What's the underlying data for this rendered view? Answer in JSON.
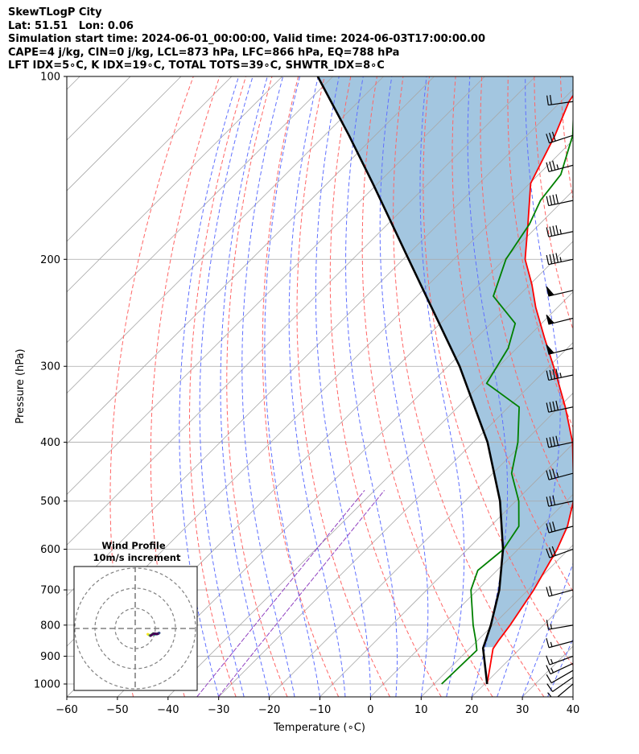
{
  "header": {
    "line1": "SkewTLogP City",
    "line2": "Lat: 51.51   Lon: 0.06",
    "line3": "Simulation start time: 2024-06-01_00:00:00, Valid time: 2024-06-03T17:00:00.00",
    "line4": "CAPE=4 j/kg, CIN=0 j/kg, LCL=873 hPa, LFC=866 hPa, EQ=788 hPa",
    "line5": "LFT IDX=5∘C, K IDX=19∘C, TOTAL TOTS=39∘C, SHWTR_IDX=8∘C"
  },
  "chart_data": {
    "type": "line",
    "title": "SkewTLogP City",
    "xlabel": "Temperature (∘C)",
    "ylabel": "Pressure (hPa)",
    "xlim": [
      -60,
      40
    ],
    "ylim": [
      1050,
      100
    ],
    "y_scale": "log",
    "x_ticks": [
      -60,
      -50,
      -40,
      -30,
      -20,
      -10,
      0,
      10,
      20,
      30,
      40
    ],
    "x_tick_labels": [
      "−60",
      "−50",
      "−40",
      "−30",
      "−20",
      "−10",
      "0",
      "10",
      "20",
      "30",
      "40"
    ],
    "y_ticks": [
      1000,
      900,
      800,
      700,
      600,
      500,
      400,
      300,
      200,
      100
    ],
    "y_tick_labels": [
      "1000",
      "900",
      "800",
      "700",
      "600",
      "500",
      "400",
      "300",
      "200",
      "100"
    ],
    "grid": true,
    "colors": {
      "temperature": "#ff0000",
      "dewpoint": "#008000",
      "parcel": "#000000",
      "shade": "#a3c6e0",
      "dry_adiabats": "#ff6666",
      "moist_adiabats": "#6070ff",
      "mixing_ratio": "#9040c0",
      "isotherms": "#a8a8a8"
    },
    "series": [
      {
        "p": [
          1000,
          875,
          850,
          800,
          700,
          600,
          550,
          500,
          450,
          400,
          350,
          310,
          270,
          240,
          220,
          200,
          175,
          150,
          125,
          110,
          100
        ],
        "t": [
          20.5,
          14.7,
          14.2,
          13.4,
          11.1,
          7.7,
          5.2,
          1.4,
          -4.1,
          -10.4,
          -18.8,
          -26.9,
          -36.4,
          -44.3,
          -49.6,
          -55.9,
          -62.3,
          -69.8,
          -74.5,
          -78.4,
          -80.0
        ]
      },
      {
        "p": [
          1000,
          880,
          850,
          800,
          700,
          650,
          600,
          550,
          500,
          450,
          400,
          350,
          320,
          280,
          255,
          230,
          200,
          175,
          160,
          145,
          125,
          110,
          100
        ],
        "t": [
          11.5,
          11.8,
          9.8,
          6.1,
          -1.3,
          -3.8,
          -2.9,
          -4.4,
          -9.4,
          -16.3,
          -21.2,
          -27.9,
          -39.0,
          -41.7,
          -45.2,
          -54.9,
          -59.7,
          -62.0,
          -64.5,
          -65.6,
          -71.0,
          -77.4,
          -80.3
        ]
      },
      {
        "p": [
          1000,
          873,
          850,
          800,
          700,
          600,
          500,
          400,
          300,
          200,
          150,
          125,
          100
        ],
        "t": [
          20.5,
          12.6,
          11.7,
          9.6,
          4.3,
          -3.0,
          -13.1,
          -27.2,
          -47.7,
          -78.9,
          -101.0,
          -115.2,
          -133.0
        ]
      }
    ],
    "wind_profile": {
      "title_line1": "Wind Profile",
      "title_line2": "10m/s increment",
      "rings_ms": [
        10,
        20,
        30
      ]
    },
    "wind_barbs": [
      {
        "p": 1000,
        "spd_kt": 13,
        "dir_deg": 230
      },
      {
        "p": 975,
        "spd_kt": 13,
        "dir_deg": 235
      },
      {
        "p": 950,
        "spd_kt": 14,
        "dir_deg": 240
      },
      {
        "p": 925,
        "spd_kt": 15,
        "dir_deg": 245
      },
      {
        "p": 900,
        "spd_kt": 16,
        "dir_deg": 250
      },
      {
        "p": 850,
        "spd_kt": 17,
        "dir_deg": 255
      },
      {
        "p": 800,
        "spd_kt": 19,
        "dir_deg": 260
      },
      {
        "p": 700,
        "spd_kt": 24,
        "dir_deg": 255
      },
      {
        "p": 600,
        "spd_kt": 30,
        "dir_deg": 250
      },
      {
        "p": 550,
        "spd_kt": 32,
        "dir_deg": 255
      },
      {
        "p": 500,
        "spd_kt": 34,
        "dir_deg": 258
      },
      {
        "p": 450,
        "spd_kt": 36,
        "dir_deg": 255
      },
      {
        "p": 400,
        "spd_kt": 40,
        "dir_deg": 258
      },
      {
        "p": 350,
        "spd_kt": 44,
        "dir_deg": 258
      },
      {
        "p": 310,
        "spd_kt": 48,
        "dir_deg": 258
      },
      {
        "p": 280,
        "spd_kt": 50,
        "dir_deg": 256
      },
      {
        "p": 250,
        "spd_kt": 52,
        "dir_deg": 256
      },
      {
        "p": 225,
        "spd_kt": 50,
        "dir_deg": 257
      },
      {
        "p": 200,
        "spd_kt": 48,
        "dir_deg": 258
      },
      {
        "p": 180,
        "spd_kt": 46,
        "dir_deg": 258
      },
      {
        "p": 160,
        "spd_kt": 42,
        "dir_deg": 258
      },
      {
        "p": 140,
        "spd_kt": 38,
        "dir_deg": 255
      },
      {
        "p": 125,
        "spd_kt": 33,
        "dir_deg": 252
      },
      {
        "p": 110,
        "spd_kt": 20,
        "dir_deg": 262
      }
    ]
  }
}
